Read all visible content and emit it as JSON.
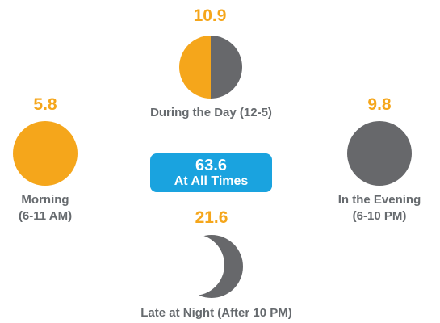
{
  "segments": {
    "day": {
      "value": "10.9",
      "label": "During the Day (12-5)"
    },
    "morning": {
      "value": "5.8",
      "label_line1": "Morning",
      "label_line2": "(6-11 AM)"
    },
    "evening": {
      "value": "9.8",
      "label_line1": "In the Evening",
      "label_line2": "(6-10 PM)"
    },
    "night": {
      "value": "21.6",
      "label": "Late at Night (After 10 PM)"
    }
  },
  "total": {
    "value": "63.6",
    "label": "At All Times"
  },
  "colors": {
    "orange": "#f5a61b",
    "gray": "#67686b",
    "blue": "#1aa3df",
    "label_gray": "#666a6e"
  }
}
